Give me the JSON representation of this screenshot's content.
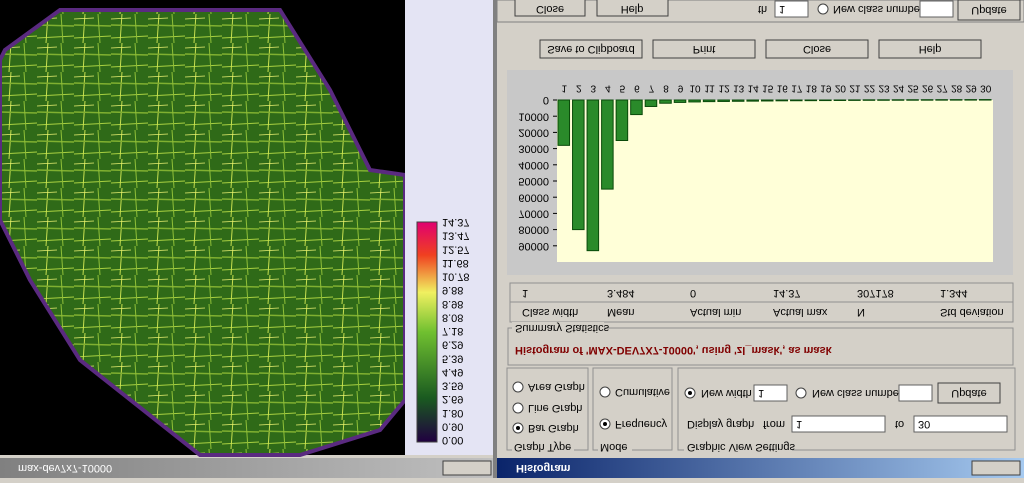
{
  "windows": {
    "image_title": "max-dev7x7-10000",
    "histogram_title": "Histogram"
  },
  "background_window": {
    "close": "Close",
    "help": "Help",
    "width_label": "th",
    "width_value": "1",
    "new_class_number": "New class number",
    "update": "Update"
  },
  "buttons": [
    "Save to Clipboard",
    "Print",
    "Close",
    "Help"
  ],
  "colorbar": {
    "labels": [
      "14.37",
      "13.47",
      "12.57",
      "11.68",
      "10.78",
      "9.88",
      "8.98",
      "8.08",
      "7.18",
      "6.29",
      "5.39",
      "4.49",
      "3.59",
      "2.69",
      "1.80",
      "0.90",
      "0.00"
    ]
  },
  "chart_data": {
    "type": "bar",
    "categories": [
      "1",
      "2",
      "3",
      "4",
      "5",
      "6",
      "7",
      "8",
      "9",
      "10",
      "11",
      "12",
      "13",
      "14",
      "15",
      "16",
      "17",
      "18",
      "19",
      "20",
      "21",
      "22",
      "23",
      "24",
      "25",
      "26",
      "27",
      "28",
      "29",
      "30"
    ],
    "values": [
      28000,
      80000,
      93000,
      55000,
      25000,
      9000,
      4000,
      2000,
      1500,
      1200,
      1000,
      900,
      800,
      700,
      600,
      500,
      450,
      400,
      350,
      300,
      250,
      200,
      180,
      160,
      140,
      120,
      100,
      80,
      60,
      40
    ],
    "color": "#2a8a2a",
    "ylim": [
      0,
      100000
    ],
    "yticks": [
      0,
      10000,
      20000,
      30000,
      40000,
      50000,
      60000,
      70000,
      80000,
      90000
    ]
  },
  "summary": {
    "headers": [
      "Class width",
      "Mean",
      "Actual min",
      "Actual max",
      "N",
      "Std deviation"
    ],
    "values": [
      "1",
      "3.484",
      "0",
      "14.37",
      "307178",
      "1.344"
    ],
    "title": "Summary Statistics",
    "message": "Histogram of 'MAX-DEV7X7-10000', using 'zl_mask', as mask"
  },
  "graph_type": {
    "title": "Graph Type",
    "options": [
      "Area Graph",
      "Line Graph",
      "Bar Graph"
    ]
  },
  "mode": {
    "title": "Mode",
    "options": [
      "Cumulative",
      "Frequency"
    ]
  },
  "view_settings": {
    "title": "Graphic View Settings",
    "new_width": "New width",
    "width_value": "1",
    "new_class_number": "New class number",
    "update": "Update",
    "display_graph": "Display graph",
    "from": "from",
    "from_value": "1",
    "to": "to",
    "to_value": "30"
  }
}
